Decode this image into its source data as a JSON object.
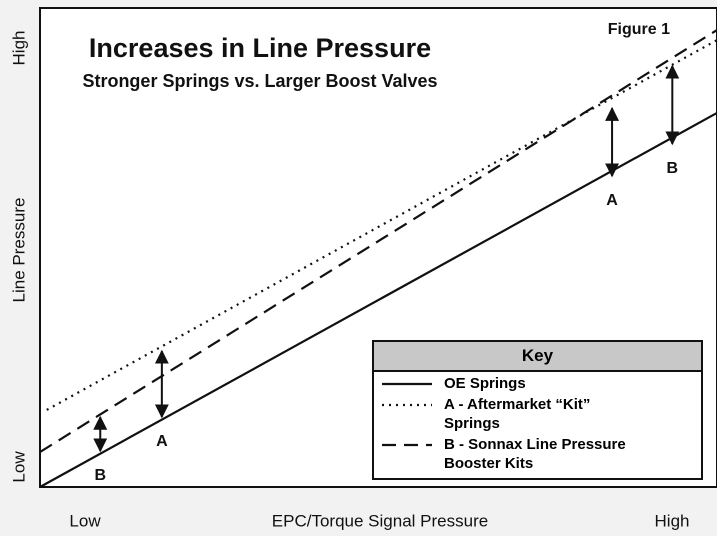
{
  "chart_data": {
    "type": "line",
    "title": "Increases in Line Pressure",
    "subtitle": "Stronger Springs vs. Larger Boost Valves",
    "figure_label": "Figure 1",
    "x_label": "EPC/Torque Signal Pressure",
    "y_label": "Line Pressure",
    "xlim": [
      0,
      100
    ],
    "ylim": [
      0,
      100
    ],
    "xticks": [
      {
        "value": 0,
        "label": "Low"
      },
      {
        "value": 100,
        "label": "High"
      }
    ],
    "yticks": [
      {
        "value": 0,
        "label": "Low"
      },
      {
        "value": 100,
        "label": "High"
      }
    ],
    "legend_title": "Key",
    "series": [
      {
        "name": "OE Springs",
        "color": "#111111",
        "style": "solid",
        "x": [
          0,
          100
        ],
        "values": [
          0,
          78.1
        ]
      },
      {
        "name": "A - Aftermarket “Kit” Springs",
        "color": "#111111",
        "style": "dotted",
        "x": [
          1,
          100
        ],
        "values": [
          16.1,
          93.3
        ]
      },
      {
        "name": "B - Sonnax Line Pressure Booster Kits",
        "color": "#111111",
        "style": "dashed",
        "x": [
          0,
          100
        ],
        "values": [
          7.3,
          95.4
        ]
      }
    ],
    "arrows": [
      {
        "label": "B",
        "x": 8.9,
        "values": [
          6.9,
          15.2
        ]
      },
      {
        "label": "A",
        "x": 18,
        "values": [
          14,
          29
        ]
      },
      {
        "label": "A",
        "x": 84.5,
        "values": [
          64.3,
          79.7
        ]
      },
      {
        "label": "B",
        "x": 93.4,
        "values": [
          71,
          88.5
        ]
      }
    ]
  }
}
